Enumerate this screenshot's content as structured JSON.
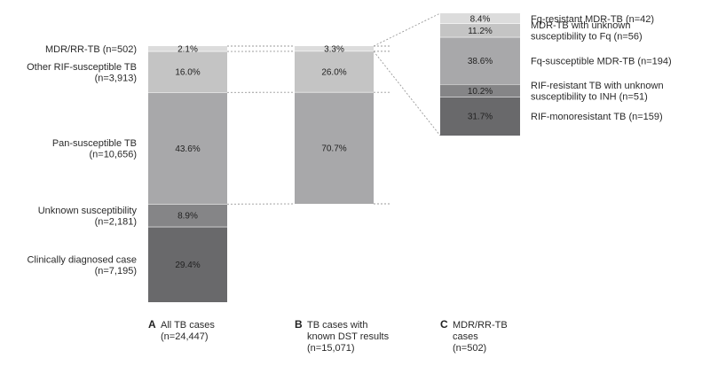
{
  "chart_data": {
    "type": "stacked-bar",
    "title": "",
    "panels": [
      {
        "letter": "A",
        "label_lines": [
          "All TB cases",
          "(n=24,447)"
        ],
        "segments": [
          {
            "name_lines": [
              "MDR/RR-TB (n=502)"
            ],
            "value": 2.1,
            "label": "2.1%",
            "color": "#dcdcdc"
          },
          {
            "name_lines": [
              "Other RIF-susceptible TB",
              "(n=3,913)"
            ],
            "value": 16.0,
            "label": "16.0%",
            "color": "#c4c4c4"
          },
          {
            "name_lines": [
              "Pan-susceptible TB",
              "(n=10,656)"
            ],
            "value": 43.6,
            "label": "43.6%",
            "color": "#a8a8aa"
          },
          {
            "name_lines": [
              "Unknown susceptibility",
              "(n=2,181)"
            ],
            "value": 8.9,
            "label": "8.9%",
            "color": "#858587"
          },
          {
            "name_lines": [
              "Clinically diagnosed case",
              "(n=7,195)"
            ],
            "value": 29.4,
            "label": "29.4%",
            "color": "#69696b"
          }
        ]
      },
      {
        "letter": "B",
        "label_lines": [
          "TB cases with",
          "known DST results",
          "(n=15,071)"
        ],
        "segments": [
          {
            "value": 3.3,
            "label": "3.3%",
            "color": "#dcdcdc"
          },
          {
            "value": 26.0,
            "label": "26.0%",
            "color": "#c4c4c4"
          },
          {
            "value": 70.7,
            "label": "70.7%",
            "color": "#a8a8aa"
          }
        ]
      },
      {
        "letter": "C",
        "label_lines": [
          "MDR/RR-TB",
          "cases",
          "(n=502)"
        ],
        "segments": [
          {
            "name_lines": [
              "Fq-resistant MDR-TB (n=42)"
            ],
            "value": 8.4,
            "label": "8.4%",
            "color": "#dcdcdc"
          },
          {
            "name_lines": [
              "MDR-TB with unknown",
              "susceptibility to Fq (n=56)"
            ],
            "value": 11.2,
            "label": "11.2%",
            "color": "#c4c4c4"
          },
          {
            "name_lines": [
              "Fq-susceptible MDR-TB (n=194)"
            ],
            "value": 38.6,
            "label": "38.6%",
            "color": "#a8a8aa"
          },
          {
            "name_lines": [
              "RIF-resistant TB with unknown",
              "susceptibility to INH (n=51)"
            ],
            "value": 10.2,
            "label": "10.2%",
            "color": "#858587"
          },
          {
            "name_lines": [
              "RIF-monoresistant TB (n=159)"
            ],
            "value": 31.7,
            "label": "31.7%",
            "color": "#69696b"
          }
        ]
      }
    ]
  }
}
